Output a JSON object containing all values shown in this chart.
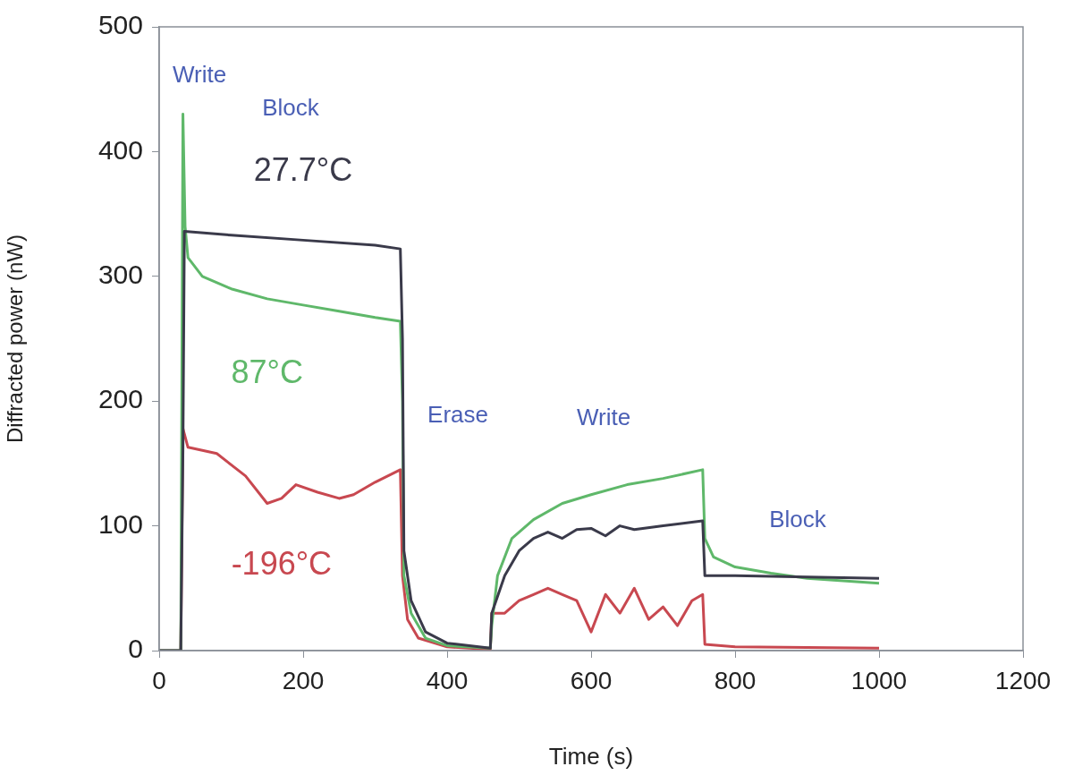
{
  "chart_data": {
    "type": "line",
    "xlabel": "Time (s)",
    "ylabel": "Diffracted power (nW)",
    "xlim": [
      0,
      1200
    ],
    "ylim": [
      0,
      500
    ],
    "xticks": [
      0,
      200,
      400,
      600,
      800,
      1000,
      1200
    ],
    "yticks": [
      0,
      100,
      200,
      300,
      400,
      500
    ],
    "grid": false,
    "legend": false,
    "marker": "none",
    "line_style": "solid",
    "series": [
      {
        "name": "27.7°C",
        "color": "#3a3a4a",
        "x": [
          0,
          30,
          33,
          35,
          100,
          200,
          300,
          335,
          338,
          340,
          350,
          370,
          400,
          460,
          462,
          480,
          500,
          520,
          540,
          560,
          580,
          600,
          620,
          640,
          660,
          700,
          740,
          755,
          758,
          800,
          900,
          1000
        ],
        "values": [
          0,
          0,
          160,
          336,
          333,
          329,
          325,
          322,
          250,
          80,
          40,
          15,
          6,
          2,
          30,
          60,
          80,
          90,
          95,
          90,
          97,
          98,
          92,
          100,
          97,
          100,
          103,
          104,
          60,
          60,
          59,
          58
        ]
      },
      {
        "name": "87°C",
        "color": "#5fb86a",
        "x": [
          0,
          30,
          33,
          36,
          40,
          60,
          100,
          150,
          200,
          250,
          300,
          335,
          338,
          340,
          350,
          370,
          400,
          460,
          462,
          470,
          490,
          520,
          560,
          600,
          650,
          700,
          755,
          758,
          770,
          800,
          850,
          900,
          1000
        ],
        "values": [
          0,
          0,
          430,
          340,
          315,
          300,
          290,
          282,
          277,
          272,
          267,
          264,
          200,
          60,
          30,
          10,
          4,
          2,
          20,
          60,
          90,
          105,
          118,
          125,
          133,
          138,
          145,
          90,
          75,
          67,
          62,
          58,
          54
        ]
      },
      {
        "name": "-196°C",
        "color": "#c84850",
        "x": [
          0,
          30,
          33,
          40,
          80,
          120,
          150,
          170,
          190,
          220,
          250,
          270,
          300,
          335,
          338,
          345,
          360,
          400,
          460,
          462,
          480,
          500,
          520,
          540,
          560,
          580,
          600,
          620,
          640,
          660,
          680,
          700,
          720,
          740,
          755,
          758,
          800,
          1000
        ],
        "values": [
          0,
          0,
          178,
          163,
          158,
          140,
          118,
          122,
          133,
          127,
          122,
          125,
          135,
          145,
          60,
          25,
          10,
          3,
          1,
          30,
          30,
          40,
          45,
          50,
          45,
          40,
          15,
          45,
          30,
          50,
          25,
          35,
          20,
          40,
          45,
          5,
          3,
          2
        ]
      }
    ],
    "annotations": [
      "Write",
      "Block",
      "Erase",
      "Write",
      "Block"
    ]
  }
}
